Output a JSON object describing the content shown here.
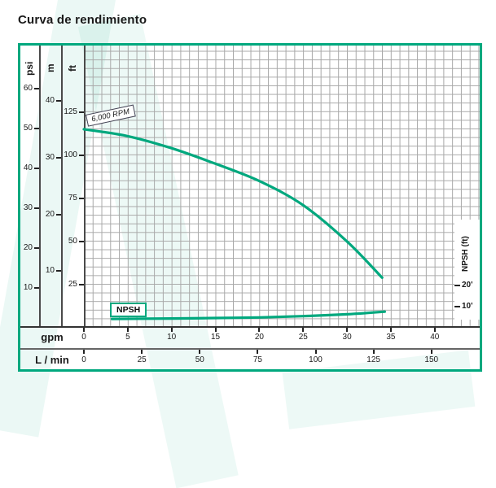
{
  "title": "Curva de rendimiento",
  "labels": {
    "rpm_badge": "6,000 RPM",
    "npsh_badge": "NPSH"
  },
  "colors": {
    "accent": "#00a87e",
    "grid": "#a8a8a8",
    "text": "#1a1a1a"
  },
  "chart_data": {
    "type": "line",
    "title": "Curva de rendimiento",
    "grid": true,
    "head_axes": [
      {
        "unit": "psi",
        "ticks": [
          60,
          50,
          40,
          30,
          20,
          10
        ]
      },
      {
        "unit": "m",
        "ticks": [
          40,
          30,
          20,
          10
        ]
      },
      {
        "unit": "ft",
        "ticks": [
          125,
          100,
          75,
          50,
          25
        ]
      }
    ],
    "npsh_axis": {
      "label": "NPSH (ft)",
      "ticks_ft": [
        20,
        10
      ],
      "tick_suffix": "'"
    },
    "bottom_axes": [
      {
        "unit": "gpm",
        "ticks": [
          0,
          5,
          10,
          15,
          20,
          25,
          30,
          35,
          40
        ]
      },
      {
        "unit": "L / min",
        "ticks": [
          0,
          25,
          50,
          75,
          100,
          125,
          150
        ]
      }
    ],
    "x_range_gpm": [
      0,
      45
    ],
    "series": [
      {
        "name": "6,000 RPM",
        "axis": "head_ft",
        "x_gpm": [
          0,
          5,
          10,
          15,
          20,
          25,
          30,
          34
        ],
        "head_ft": [
          115,
          111,
          104,
          95,
          85,
          71,
          50,
          29
        ]
      },
      {
        "name": "NPSH",
        "axis": "npsh_ft",
        "x_gpm": [
          3.2,
          10,
          15,
          20,
          25,
          30,
          34.3
        ],
        "npsh_ft": [
          4.2,
          4.4,
          4.6,
          4.9,
          5.5,
          6.4,
          7.6
        ]
      }
    ]
  }
}
